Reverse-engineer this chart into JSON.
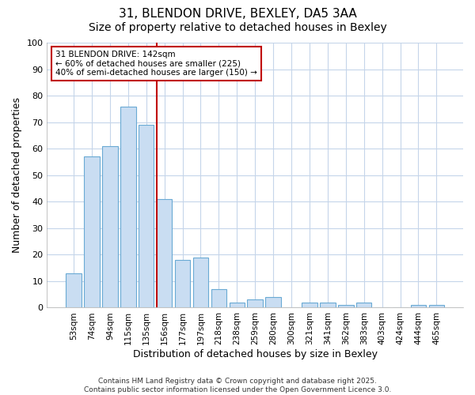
{
  "title_line1": "31, BLENDON DRIVE, BEXLEY, DA5 3AA",
  "title_line2": "Size of property relative to detached houses in Bexley",
  "xlabel": "Distribution of detached houses by size in Bexley",
  "ylabel": "Number of detached properties",
  "categories": [
    "53sqm",
    "74sqm",
    "94sqm",
    "115sqm",
    "135sqm",
    "156sqm",
    "177sqm",
    "197sqm",
    "218sqm",
    "238sqm",
    "259sqm",
    "280sqm",
    "300sqm",
    "321sqm",
    "341sqm",
    "362sqm",
    "383sqm",
    "403sqm",
    "424sqm",
    "444sqm",
    "465sqm"
  ],
  "values": [
    13,
    57,
    61,
    76,
    69,
    41,
    18,
    19,
    7,
    2,
    3,
    4,
    0,
    2,
    2,
    1,
    2,
    0,
    0,
    1,
    1
  ],
  "bar_color": "#c9ddf2",
  "bar_edge_color": "#6aaad4",
  "grid_color": "#c5d5ea",
  "red_line_color": "#c00000",
  "red_line_x": 4.57,
  "annotation_text": "31 BLENDON DRIVE: 142sqm\n← 60% of detached houses are smaller (225)\n40% of semi-detached houses are larger (150) →",
  "annotation_box_facecolor": "#ffffff",
  "annotation_box_edgecolor": "#c00000",
  "ylim": [
    0,
    100
  ],
  "yticks": [
    0,
    10,
    20,
    30,
    40,
    50,
    60,
    70,
    80,
    90,
    100
  ],
  "figure_facecolor": "#ffffff",
  "axes_facecolor": "#ffffff",
  "title_fontsize": 11,
  "subtitle_fontsize": 10,
  "tick_fontsize": 7.5,
  "ylabel_fontsize": 9,
  "xlabel_fontsize": 9,
  "footer_line1": "Contains HM Land Registry data © Crown copyright and database right 2025.",
  "footer_line2": "Contains public sector information licensed under the Open Government Licence 3.0."
}
